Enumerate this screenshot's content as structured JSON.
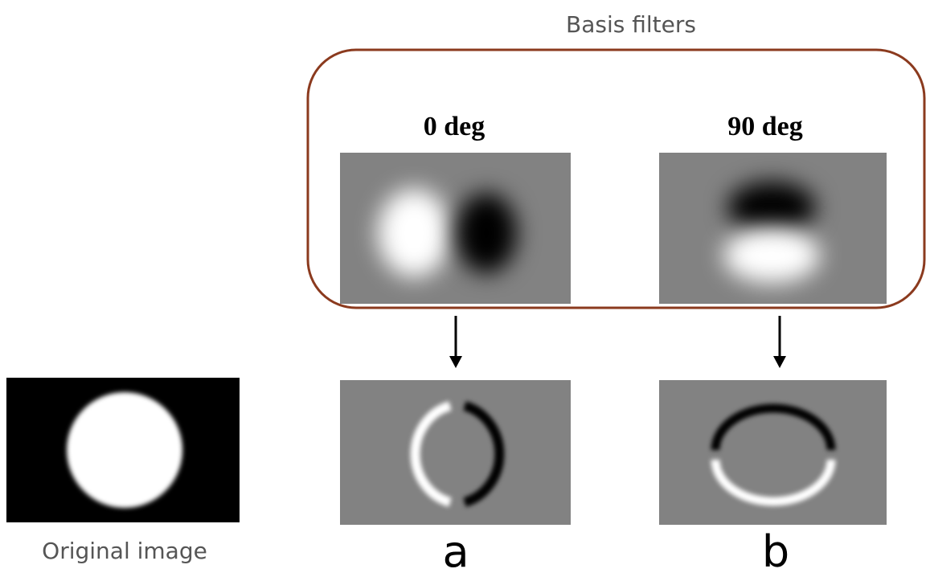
{
  "header": {
    "title": "Basis filters"
  },
  "filters": [
    {
      "label": "0 deg"
    },
    {
      "label": "90 deg"
    }
  ],
  "original": {
    "caption": "Original image"
  },
  "responses": [
    {
      "caption": "a"
    },
    {
      "caption": "b"
    }
  ]
}
